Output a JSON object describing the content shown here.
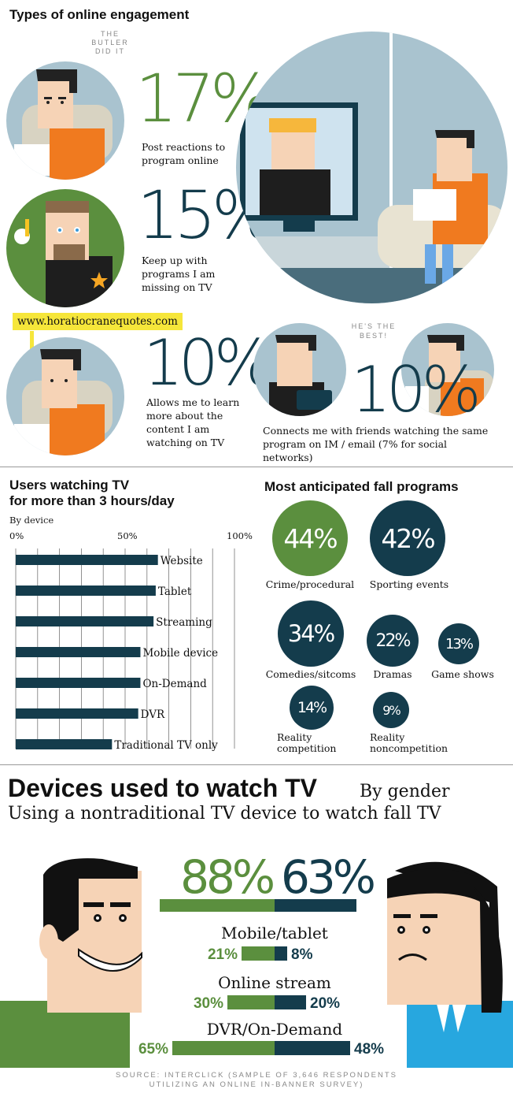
{
  "engagement": {
    "title": "Types of online engagement",
    "items": [
      {
        "pct": "17%",
        "label": "Post reactions to program online",
        "color": "#5b8f3e"
      },
      {
        "pct": "15%",
        "label": "Keep up with programs I am missing on TV",
        "color": "#143c4c"
      },
      {
        "pct": "10%",
        "label": "Allows me to learn more about the content I am watching on TV",
        "color": "#143c4c"
      },
      {
        "pct": "10%",
        "label": "Connects me with friends watching the same program on IM / email (7% for social networks)",
        "color": "#143c4c"
      }
    ],
    "speech_butler": "THE BUTLER DID IT",
    "speech_best": "HE'S THE BEST!",
    "callout_url": "www.horatiocranequotes.com"
  },
  "users_chart": {
    "title_line1": "Users watching TV",
    "title_line2": "for more than 3 hours/day",
    "subtitle": "By device",
    "ticks": [
      "0%",
      "50%",
      "100%"
    ]
  },
  "anticipated": {
    "title": "Most anticipated fall programs"
  },
  "devices": {
    "title": "Devices used to watch TV",
    "by_gender": "By gender",
    "subtitle": "Using a nontraditional TV device to watch fall TV",
    "male_total": "88%",
    "female_total": "63%",
    "rows": [
      {
        "label": "Mobile/tablet",
        "male": "21%",
        "female": "8%"
      },
      {
        "label": "Online stream",
        "male": "30%",
        "female": "20%"
      },
      {
        "label": "DVR/On-Demand",
        "male": "65%",
        "female": "48%"
      }
    ]
  },
  "source": {
    "line1": "SOURCE: INTERCLICK (SAMPLE OF 3,646 RESPONDENTS",
    "line2": "UTILIZING AN ONLINE IN-BANNER SURVEY)"
  },
  "colors": {
    "green": "#5b8f3e",
    "navy": "#143c4c",
    "sky": "#a9c3cf",
    "orange": "#f07a1f",
    "skin": "#f6d3b6"
  },
  "chart_data": [
    {
      "type": "bar",
      "orientation": "horizontal",
      "title": "Users watching TV for more than 3 hours/day",
      "subtitle": "By device",
      "categories": [
        "Website",
        "Tablet",
        "Streaming",
        "Mobile device",
        "On-Demand",
        "DVR",
        "Traditional TV only"
      ],
      "values": [
        65,
        64,
        63,
        57,
        57,
        56,
        44
      ],
      "xlim": [
        0,
        100
      ],
      "xticks": [
        "0%",
        "50%",
        "100%"
      ],
      "grid": true
    },
    {
      "type": "bubble",
      "title": "Most anticipated fall programs",
      "categories": [
        "Crime/procedural",
        "Sporting events",
        "Comedies/sitcoms",
        "Dramas",
        "Game shows",
        "Reality competition",
        "Reality noncompetition"
      ],
      "values": [
        44,
        42,
        34,
        22,
        13,
        14,
        9
      ],
      "labels": [
        "44%",
        "42%",
        "34%",
        "22%",
        "13%",
        "14%",
        "9%"
      ],
      "colors": [
        "#5b8f3e",
        "#143c4c",
        "#143c4c",
        "#143c4c",
        "#143c4c",
        "#143c4c",
        "#143c4c"
      ]
    },
    {
      "type": "bar",
      "orientation": "diverging",
      "title": "Devices used to watch TV",
      "subtitle": "Using a nontraditional TV device to watch fall TV",
      "categories": [
        "Mobile/tablet",
        "Online stream",
        "DVR/On-Demand"
      ],
      "series": [
        {
          "values": [
            21,
            30,
            65
          ],
          "color": "#5b8f3e"
        },
        {
          "values": [
            8,
            20,
            48
          ],
          "color": "#143c4c"
        }
      ],
      "totals": [
        88,
        63
      ]
    }
  ]
}
